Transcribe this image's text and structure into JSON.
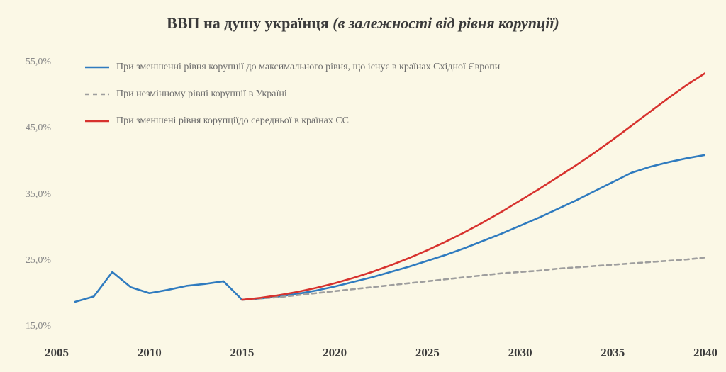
{
  "title_bold": "ВВП на душу українця",
  "title_italic": "(в залежності від рівня корупції)",
  "background_color": "#fbf8e6",
  "axis_color": "#bdbdbd",
  "y_label_color": "#8a8a8a",
  "x_label_color": "#3b3b3b",
  "title_fontsize": 22,
  "axis_fontsize_x": 17,
  "axis_fontsize_y": 14,
  "plot": {
    "type": "line",
    "xlim": [
      2005,
      2040
    ],
    "ylim": [
      13,
      58
    ],
    "x_ticks": [
      2005,
      2010,
      2015,
      2020,
      2025,
      2030,
      2035,
      2040
    ],
    "y_ticks": [
      15,
      25,
      35,
      45,
      55
    ],
    "y_tick_labels": [
      "15,0%",
      "25,0%",
      "35,0%",
      "45,0%",
      "55,0%"
    ],
    "line_width": 2.6,
    "series": [
      {
        "key": "east_europe_max",
        "label": "При зменшенні рівня корупції до максимального рівня, що існує в країнах Східної Європи",
        "color": "#2f7bbf",
        "dash": "none",
        "x": [
          2006,
          2007,
          2008,
          2009,
          2010,
          2011,
          2012,
          2013,
          2014,
          2015,
          2016,
          2017,
          2018,
          2019,
          2020,
          2021,
          2022,
          2023,
          2024,
          2025,
          2026,
          2027,
          2028,
          2029,
          2030,
          2031,
          2032,
          2033,
          2034,
          2035,
          2036,
          2037,
          2038,
          2039,
          2040
        ],
        "y": [
          18.8,
          19.6,
          23.3,
          21.0,
          20.1,
          20.6,
          21.2,
          21.5,
          21.9,
          19.1,
          19.3,
          19.6,
          20.0,
          20.5,
          21.1,
          21.8,
          22.5,
          23.3,
          24.1,
          25.0,
          25.9,
          26.9,
          28.0,
          29.1,
          30.3,
          31.5,
          32.8,
          34.1,
          35.5,
          36.9,
          38.3,
          39.2,
          39.9,
          40.5,
          41.0
        ]
      },
      {
        "key": "unchanged",
        "label": "При незмінному рівні корупції в Україні",
        "color": "#9e9e9e",
        "dash": "6,5",
        "x": [
          2015,
          2016,
          2017,
          2018,
          2019,
          2020,
          2021,
          2022,
          2023,
          2024,
          2025,
          2026,
          2027,
          2028,
          2029,
          2030,
          2031,
          2032,
          2033,
          2034,
          2035,
          2036,
          2037,
          2038,
          2039,
          2040
        ],
        "y": [
          19.1,
          19.3,
          19.5,
          19.8,
          20.1,
          20.4,
          20.7,
          21.0,
          21.3,
          21.6,
          21.9,
          22.2,
          22.5,
          22.8,
          23.1,
          23.3,
          23.5,
          23.8,
          24.0,
          24.2,
          24.4,
          24.6,
          24.8,
          25.0,
          25.2,
          25.5
        ]
      },
      {
        "key": "eu_average",
        "label": "При зменшені рівня корупціїдо середньої в країнах ЄС",
        "color": "#d7322e",
        "dash": "none",
        "x": [
          2015,
          2016,
          2017,
          2018,
          2019,
          2020,
          2021,
          2022,
          2023,
          2024,
          2025,
          2026,
          2027,
          2028,
          2029,
          2030,
          2031,
          2032,
          2033,
          2034,
          2035,
          2036,
          2037,
          2038,
          2039,
          2040
        ],
        "y": [
          19.1,
          19.4,
          19.8,
          20.3,
          20.9,
          21.6,
          22.4,
          23.3,
          24.3,
          25.4,
          26.6,
          27.9,
          29.3,
          30.8,
          32.4,
          34.1,
          35.8,
          37.6,
          39.4,
          41.3,
          43.3,
          45.4,
          47.5,
          49.6,
          51.6,
          53.4
        ]
      }
    ]
  },
  "legend_order": [
    "east_europe_max",
    "unchanged",
    "eu_average"
  ]
}
